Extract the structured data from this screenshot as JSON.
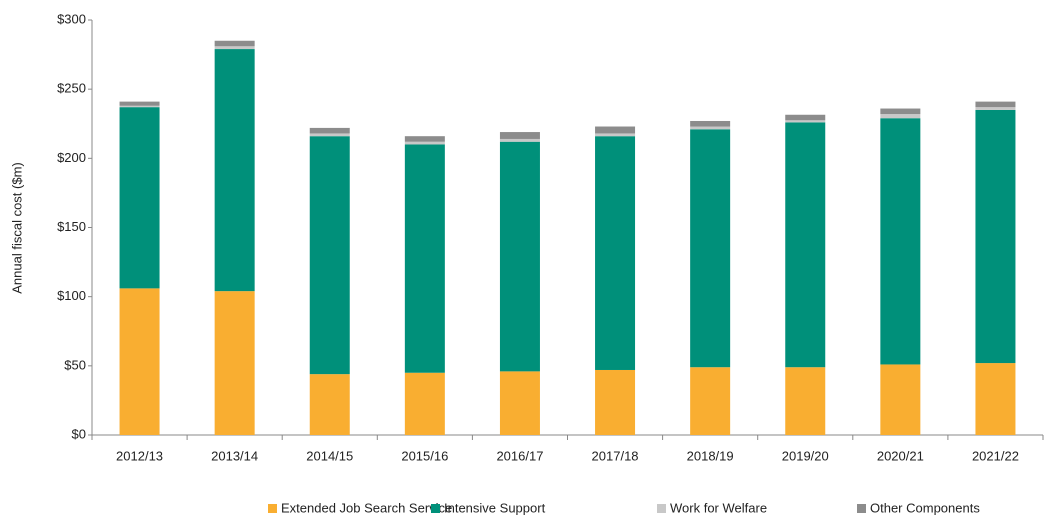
{
  "chart_data": {
    "type": "stacked_bar",
    "y_label": "Annual fiscal cost ($m)",
    "categories": [
      "2012/13",
      "2013/14",
      "2014/15",
      "2015/16",
      "2016/17",
      "2017/18",
      "2018/19",
      "2019/20",
      "2020/21",
      "2021/22"
    ],
    "series": [
      {
        "name": "Extended Job Search Service",
        "color": "#f9ae31",
        "values": [
          106,
          104,
          44,
          45,
          46,
          47,
          49,
          49,
          51,
          52
        ]
      },
      {
        "name": "Intensive Support",
        "color": "#00907a",
        "values": [
          131,
          175,
          172,
          165,
          166,
          169,
          172,
          177,
          178,
          183
        ]
      },
      {
        "name": "Work for Welfare",
        "color": "#c8c8c8",
        "values": [
          1,
          2,
          2,
          2,
          2,
          2,
          2,
          1.5,
          3,
          2
        ]
      },
      {
        "name": "Other Components",
        "color": "#8c8c8c",
        "values": [
          3,
          4,
          4,
          4,
          5,
          5,
          4,
          4,
          4,
          4
        ]
      }
    ],
    "ylim": [
      0,
      300
    ],
    "yticks": [
      {
        "value": 0,
        "label": "$0"
      },
      {
        "value": 50,
        "label": "$50"
      },
      {
        "value": 100,
        "label": "$100"
      },
      {
        "value": 150,
        "label": "$150"
      },
      {
        "value": 200,
        "label": "$200"
      },
      {
        "value": 250,
        "label": "$250"
      },
      {
        "value": 300,
        "label": "$300"
      }
    ],
    "grid": false,
    "legend": "bottom"
  }
}
